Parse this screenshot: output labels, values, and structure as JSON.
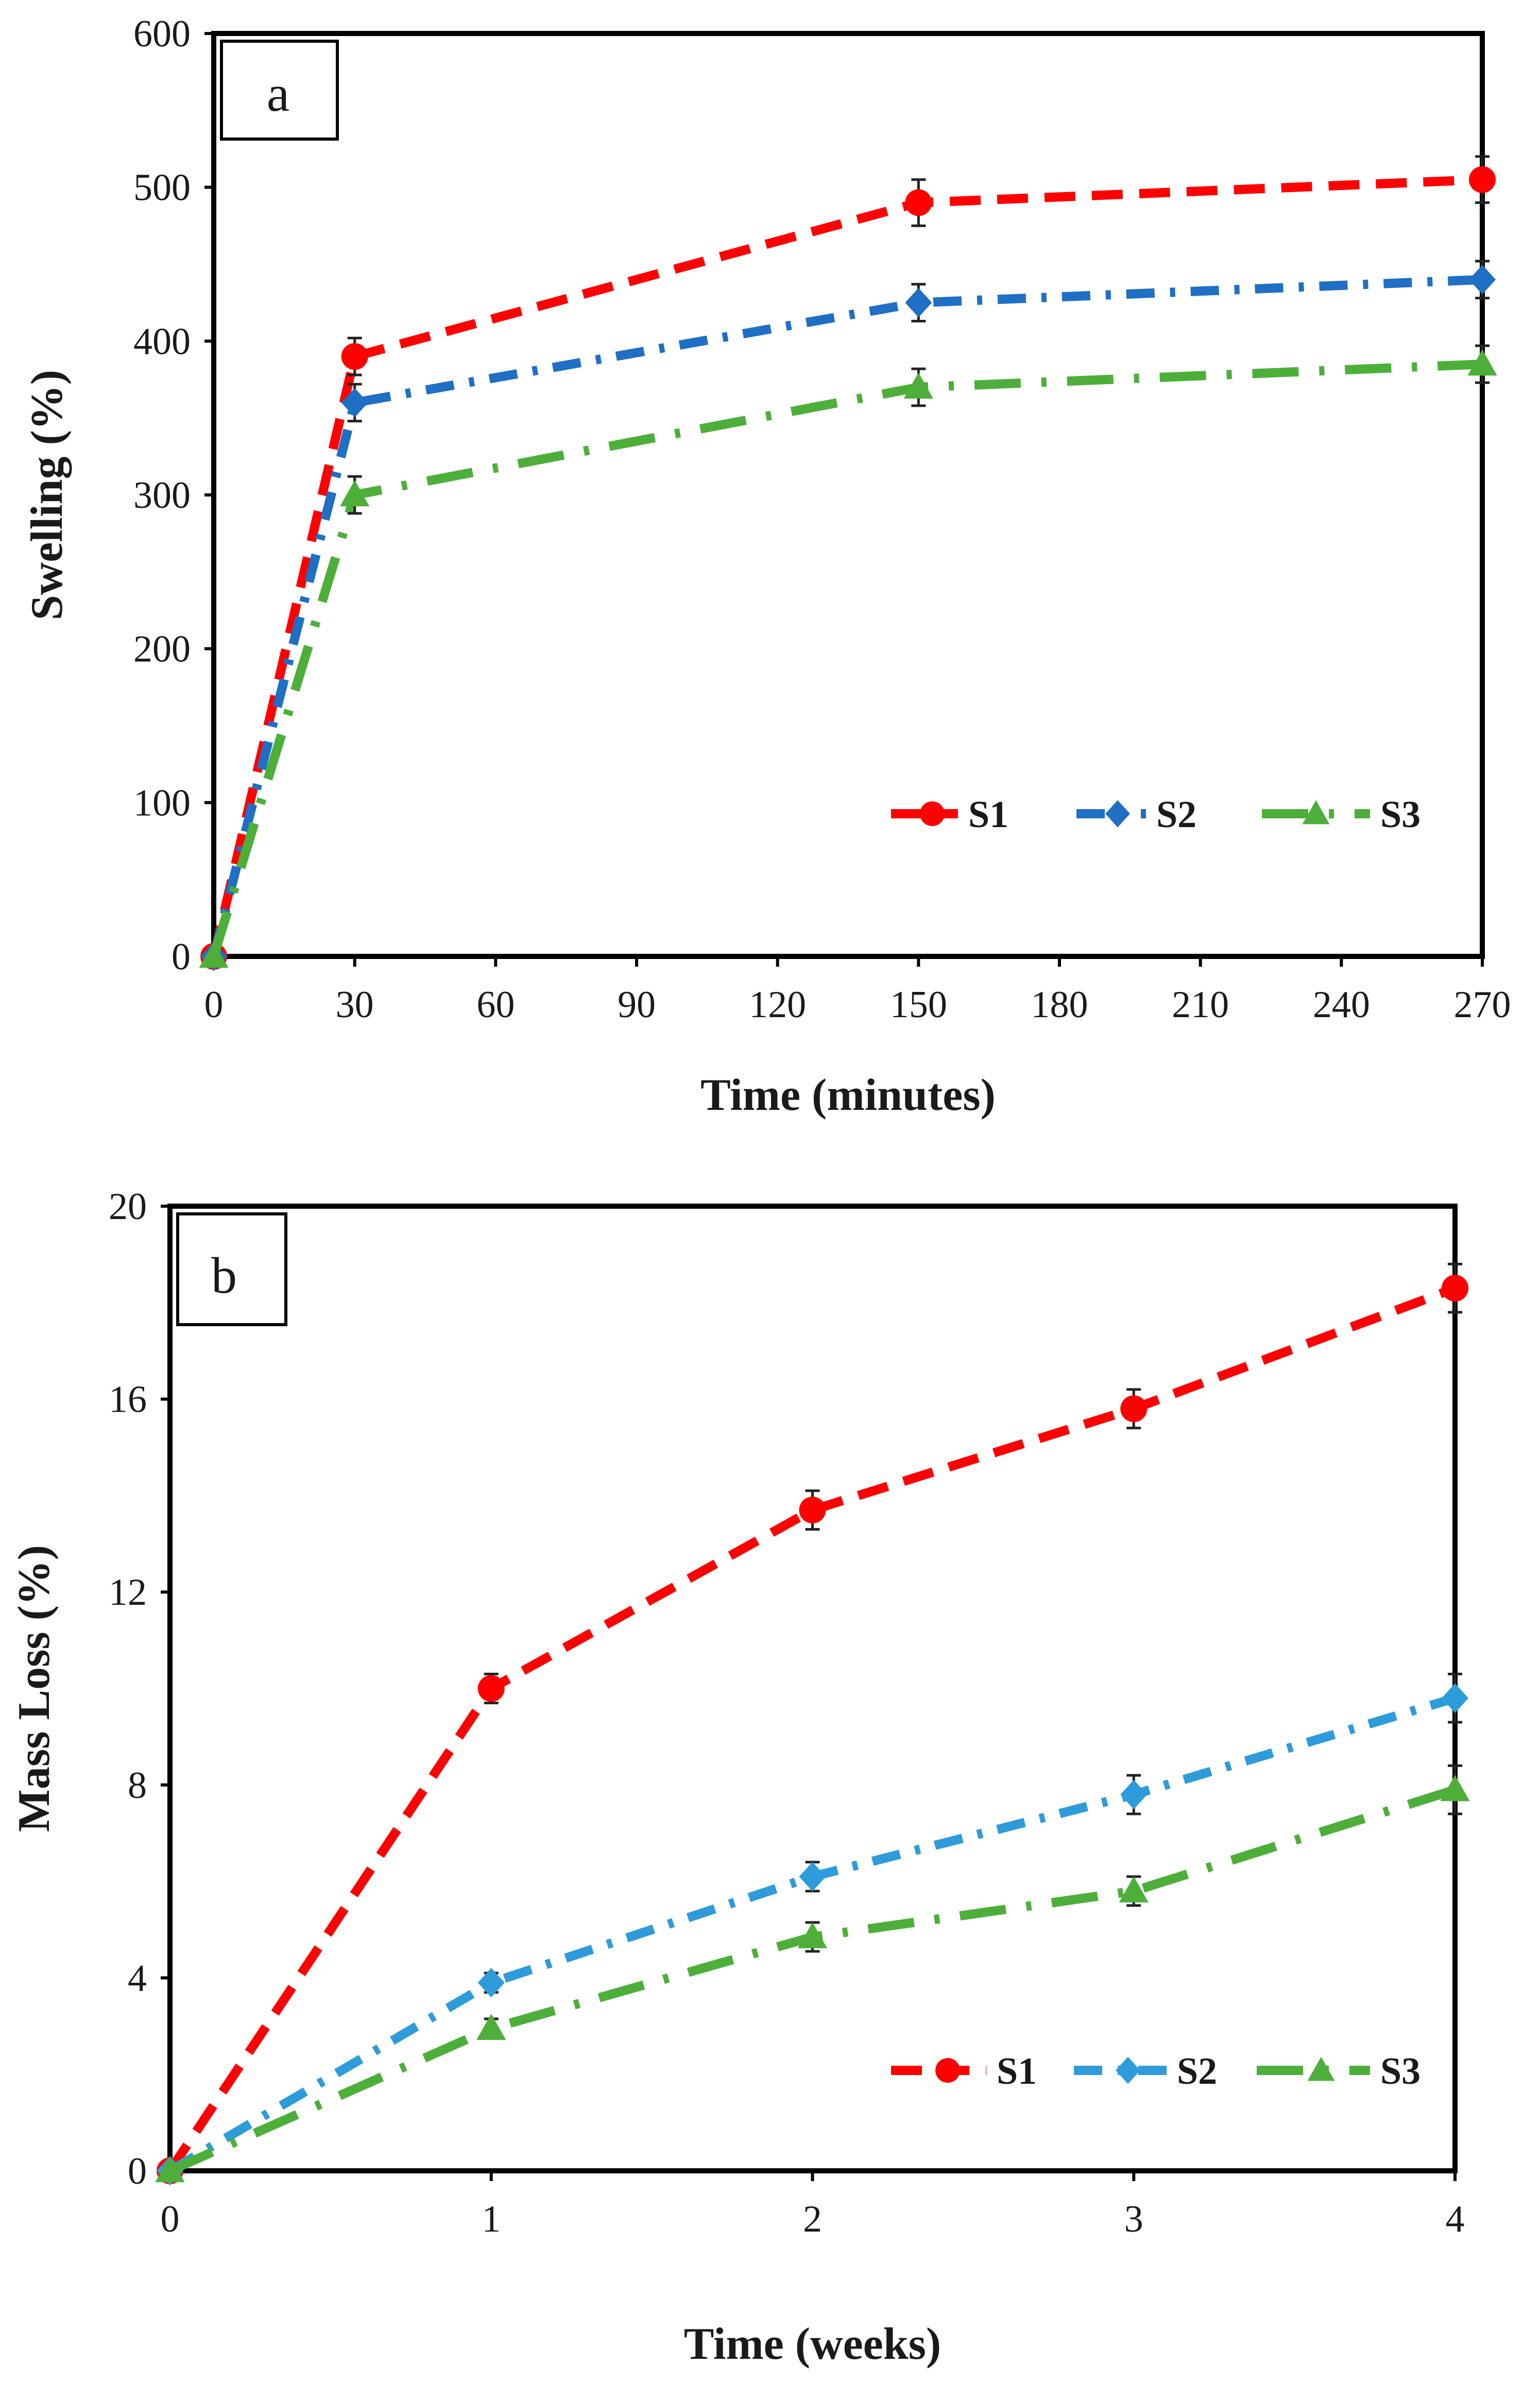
{
  "chart_data": [
    {
      "panel": "a",
      "type": "line",
      "title": "",
      "xlabel": "Time (minutes)",
      "ylabel": "Swelling  (%)",
      "xlim": [
        0,
        270
      ],
      "ylim": [
        0,
        600
      ],
      "xticks": [
        0,
        30,
        60,
        90,
        120,
        150,
        180,
        210,
        240,
        270
      ],
      "yticks": [
        0,
        100,
        200,
        300,
        400,
        500,
        600
      ],
      "x": [
        0,
        30,
        150,
        270
      ],
      "legend_position": "bottom-right",
      "series": [
        {
          "name": "S1",
          "color": "#ff0000",
          "marker": "circle",
          "dash": "dash",
          "values": [
            0,
            390,
            490,
            505
          ],
          "errors": [
            0,
            12,
            15,
            15
          ]
        },
        {
          "name": "S2",
          "color": "#1f6fc4",
          "marker": "diamond",
          "dash": "dashdot",
          "values": [
            0,
            360,
            425,
            440
          ],
          "errors": [
            0,
            12,
            12,
            12
          ]
        },
        {
          "name": "S3",
          "color": "#4daf3a",
          "marker": "triangle",
          "dash": "longdashdot",
          "values": [
            0,
            300,
            370,
            385
          ],
          "errors": [
            0,
            12,
            12,
            12
          ]
        }
      ]
    },
    {
      "panel": "b",
      "type": "line",
      "title": "",
      "xlabel": "Time (weeks)",
      "ylabel": "Mass Loss (%)",
      "xlim": [
        0,
        4
      ],
      "ylim": [
        0,
        20
      ],
      "xticks": [
        0,
        1,
        2,
        3,
        4
      ],
      "yticks": [
        0,
        4,
        8,
        12,
        16,
        20
      ],
      "x": [
        0,
        1,
        2,
        3,
        4
      ],
      "legend_position": "bottom-right",
      "series": [
        {
          "name": "S1",
          "color": "#ff0000",
          "marker": "circle",
          "dash": "dash",
          "values": [
            0,
            10.0,
            13.7,
            15.8,
            18.3
          ],
          "errors": [
            0,
            0.3,
            0.4,
            0.4,
            0.5
          ]
        },
        {
          "name": "S2",
          "color": "#2e9bdb",
          "marker": "diamond",
          "dash": "dashdot",
          "values": [
            0,
            3.9,
            6.1,
            7.8,
            9.8
          ],
          "errors": [
            0,
            0.2,
            0.3,
            0.4,
            0.5
          ]
        },
        {
          "name": "S3",
          "color": "#4daf3a",
          "marker": "triangle",
          "dash": "longdashdot",
          "values": [
            0,
            2.95,
            4.85,
            5.8,
            7.9
          ],
          "errors": [
            0,
            0.2,
            0.3,
            0.3,
            0.5
          ]
        }
      ]
    }
  ]
}
